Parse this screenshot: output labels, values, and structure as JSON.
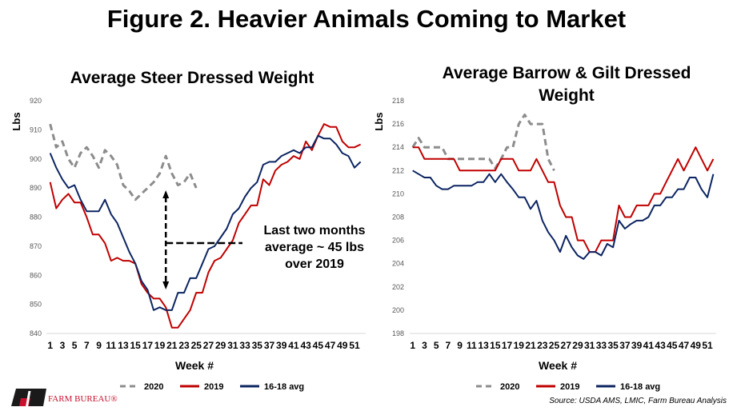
{
  "title": "Figure 2. Heavier Animals Coming to Market",
  "colors": {
    "s2020": "#8c8c8c",
    "s2019": "#c00000",
    "avg": "#0c2461"
  },
  "footer": {
    "logo_text": "FARM BUREAU®",
    "source": "Source: USDA AMS, LMIC, Farm Bureau Analysis"
  },
  "chart_data": [
    {
      "type": "line",
      "title": "Average Steer Dressed Weight",
      "xlabel": "Week #",
      "ylabel": "Lbs",
      "ylim": [
        840,
        920
      ],
      "yticks": [
        840,
        850,
        860,
        870,
        880,
        890,
        900,
        910,
        920
      ],
      "xticks": [
        1,
        3,
        5,
        7,
        9,
        11,
        13,
        15,
        17,
        19,
        21,
        23,
        25,
        27,
        29,
        31,
        33,
        35,
        37,
        39,
        41,
        43,
        45,
        47,
        49,
        51
      ],
      "xlim": [
        1,
        52
      ],
      "legend": "bottom",
      "annotation": {
        "lines": [
          "Last two months",
          "average ~ 45 lbs",
          "over 2019"
        ],
        "week": 20
      },
      "series": [
        {
          "name": "2020",
          "style": "dashed",
          "color": "#8c8c8c",
          "values": [
            912,
            904,
            906,
            900,
            897,
            902,
            904,
            901,
            897,
            903,
            901,
            898,
            891,
            889,
            886,
            888,
            890,
            892,
            895,
            901,
            895,
            891,
            892,
            895,
            890
          ]
        },
        {
          "name": "2019",
          "style": "solid",
          "color": "#c00000",
          "values": [
            892,
            883,
            886,
            888,
            885,
            885,
            880,
            874,
            874,
            871,
            865,
            866,
            865,
            865,
            864,
            857,
            854,
            852,
            852,
            849,
            842,
            842,
            845,
            848,
            854,
            854,
            861,
            865,
            866,
            869,
            872,
            878,
            881,
            884,
            884,
            893,
            891,
            896,
            898,
            899,
            901,
            900,
            906,
            903,
            908,
            912,
            911,
            911,
            906,
            904,
            904,
            905
          ]
        },
        {
          "name": "16-18 avg",
          "style": "solid",
          "color": "#0c2461",
          "values": [
            902,
            897,
            893,
            890,
            891,
            886,
            882,
            882,
            882,
            886,
            881,
            878,
            873,
            868,
            864,
            858,
            855,
            848,
            849,
            848,
            848,
            854,
            854,
            859,
            859,
            864,
            869,
            870,
            873,
            876,
            881,
            883,
            887,
            890,
            892,
            898,
            899,
            899,
            901,
            902,
            903,
            902,
            904,
            904,
            908,
            907,
            907,
            905,
            902,
            901,
            897,
            899
          ]
        }
      ]
    },
    {
      "type": "line",
      "title": "Average Barrow & Gilt Dressed Weight",
      "title_lines": [
        "Average Barrow & Gilt Dressed",
        "Weight"
      ],
      "xlabel": "Week #",
      "ylabel": "Lbs",
      "ylim": [
        198,
        218
      ],
      "yticks": [
        198,
        200,
        202,
        204,
        206,
        208,
        210,
        212,
        214,
        216,
        218
      ],
      "xticks": [
        1,
        3,
        5,
        7,
        9,
        11,
        13,
        15,
        17,
        19,
        21,
        23,
        25,
        27,
        29,
        31,
        33,
        35,
        37,
        39,
        41,
        43,
        45,
        47,
        49,
        51
      ],
      "xlim": [
        1,
        52
      ],
      "legend": "bottom",
      "series": [
        {
          "name": "2020",
          "style": "dashed",
          "color": "#8c8c8c",
          "values": [
            214,
            214.8,
            214,
            214,
            214,
            214,
            213,
            213,
            213,
            213,
            213,
            213,
            213,
            213,
            212.2,
            213,
            214,
            214,
            216,
            216.8,
            216,
            216,
            216,
            213,
            212
          ]
        },
        {
          "name": "2019",
          "style": "solid",
          "color": "#c00000",
          "values": [
            214,
            214,
            213,
            213,
            213,
            213,
            213,
            213,
            212,
            212,
            212,
            212,
            212,
            212,
            212,
            213,
            213,
            213,
            212,
            212,
            212,
            213,
            212,
            211,
            211,
            209,
            208,
            208,
            206,
            206,
            205,
            205,
            206,
            206,
            206,
            209,
            208,
            208,
            209,
            209,
            209,
            210,
            210,
            211,
            212,
            213,
            212,
            213,
            214,
            213,
            212,
            213
          ]
        },
        {
          "name": "16-18 avg",
          "style": "solid",
          "color": "#0c2461",
          "values": [
            212,
            211.7,
            211.4,
            211.4,
            210.7,
            210.4,
            210.4,
            210.7,
            210.7,
            210.7,
            210.7,
            211,
            211,
            211.7,
            211,
            211.7,
            211,
            210.4,
            209.7,
            209.7,
            208.7,
            209.4,
            207.7,
            206.7,
            206,
            205,
            206.4,
            205.4,
            204.7,
            204.4,
            205,
            205,
            204.7,
            205.7,
            205.4,
            207.7,
            207,
            207.4,
            207.7,
            207.7,
            208,
            209,
            209,
            209.7,
            209.7,
            210.4,
            210.4,
            211.4,
            211.4,
            210.4,
            209.7,
            211.7
          ]
        }
      ]
    }
  ]
}
